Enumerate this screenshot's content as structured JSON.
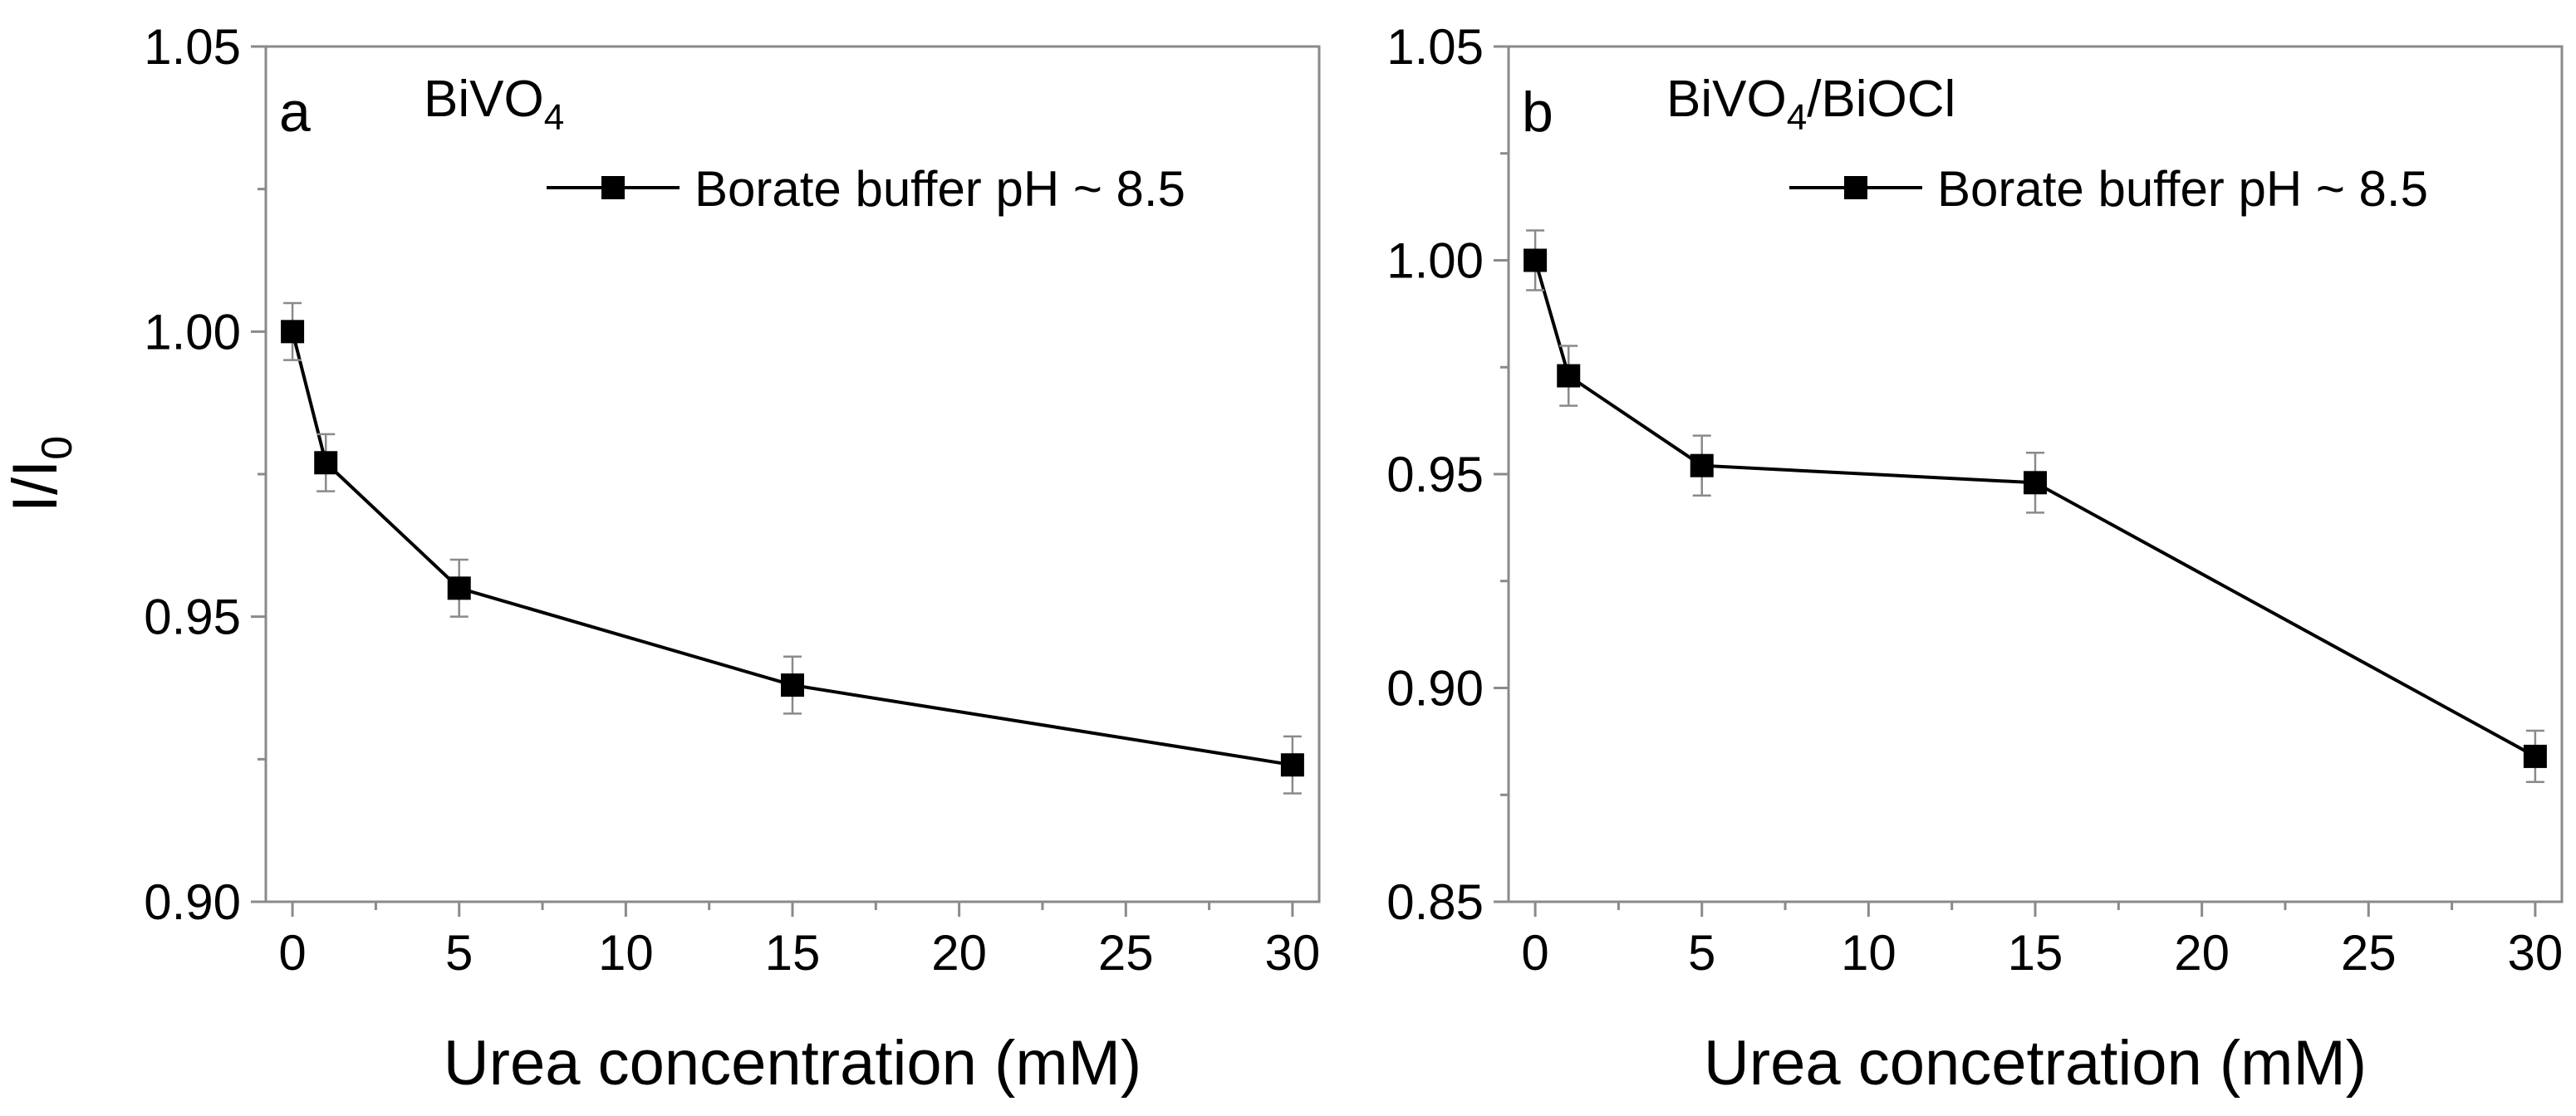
{
  "chart_data": [
    {
      "type": "line",
      "panel_label": "a",
      "title": "BiVO",
      "title_subscript": "4",
      "title_suffix": "",
      "xlabel": "Urea concentration (mM)",
      "ylabel": "I/I",
      "ylabel_subscript": "0",
      "xlim": [
        -0.8,
        30.8
      ],
      "ylim": [
        0.9,
        1.05
      ],
      "xticks": [
        0,
        5,
        10,
        15,
        20,
        25,
        30
      ],
      "xtick_labels": [
        "0",
        "5",
        "10",
        "15",
        "20",
        "25",
        "30"
      ],
      "yticks": [
        0.9,
        0.95,
        1.0,
        1.05
      ],
      "ytick_labels": [
        "0.90",
        "0.95",
        "1.00",
        "1.05"
      ],
      "legend_position": "top-right",
      "series": [
        {
          "name": "Borate buffer pH ~ 8.5",
          "marker": "square",
          "color": "#000000",
          "x": [
            0,
            1,
            5,
            15,
            30
          ],
          "y": [
            1.0,
            0.977,
            0.955,
            0.938,
            0.924
          ],
          "error": [
            0.005,
            0.005,
            0.005,
            0.005,
            0.005
          ]
        }
      ]
    },
    {
      "type": "line",
      "panel_label": "b",
      "title": "BiVO",
      "title_subscript": "4",
      "title_suffix": "/BiOCl",
      "xlabel": "Urea concetration (mM)",
      "ylabel": "",
      "ylabel_subscript": "",
      "xlim": [
        -0.8,
        30.8
      ],
      "ylim": [
        0.85,
        1.05
      ],
      "xticks": [
        0,
        5,
        10,
        15,
        20,
        25,
        30
      ],
      "xtick_labels": [
        "0",
        "5",
        "10",
        "15",
        "20",
        "25",
        "30"
      ],
      "yticks": [
        0.85,
        0.9,
        0.95,
        1.0,
        1.05
      ],
      "ytick_labels": [
        "0.85",
        "0.90",
        "0.95",
        "1.00",
        "1.05"
      ],
      "legend_position": "top-right",
      "series": [
        {
          "name": "Borate buffer pH ~ 8.5",
          "marker": "square",
          "color": "#000000",
          "x": [
            0,
            1,
            5,
            15,
            30
          ],
          "y": [
            1.0,
            0.973,
            0.952,
            0.948,
            0.884
          ],
          "error": [
            0.007,
            0.007,
            0.007,
            0.007,
            0.006
          ]
        }
      ]
    }
  ]
}
